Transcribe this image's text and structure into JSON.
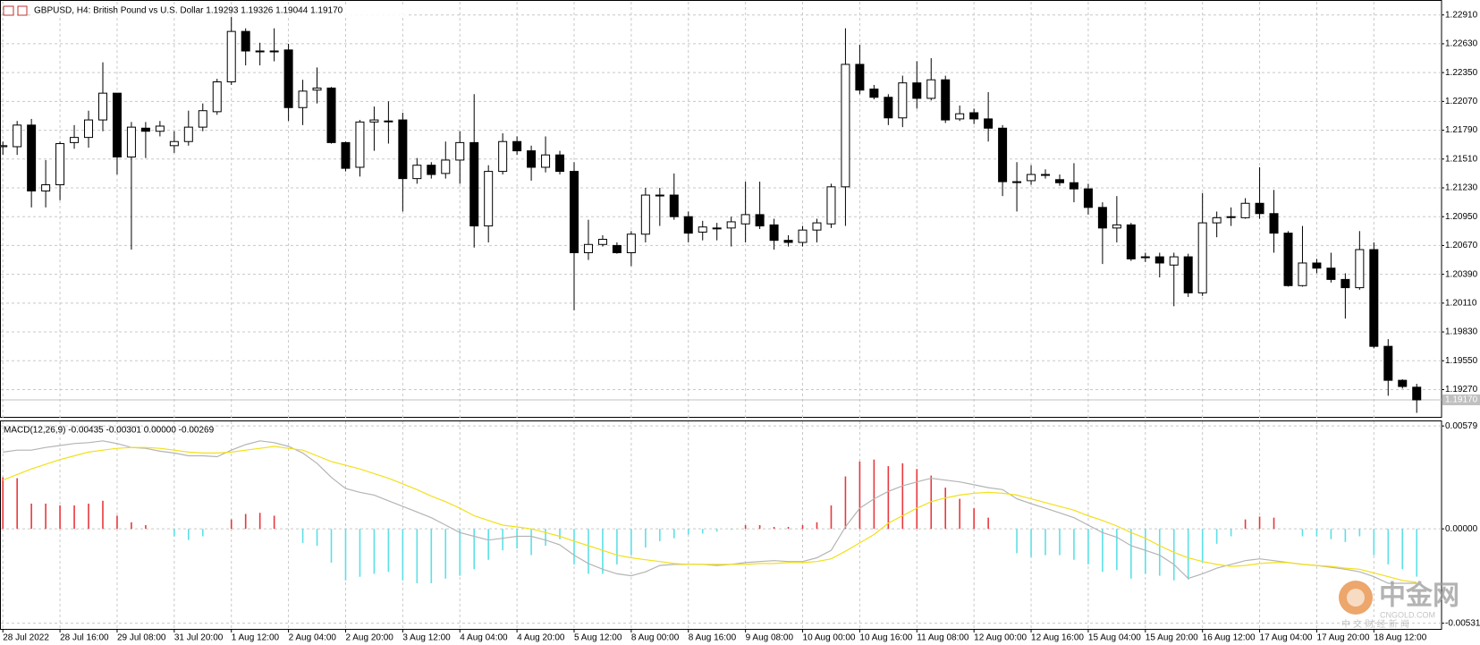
{
  "chart_data": [
    {
      "type": "candlestick",
      "title": "GBPUSD, H4:  British Pound vs U.S. Dollar  1.19293 1.19326 1.19044 1.19170",
      "categories": [
        "28 Jul 2022",
        null,
        null,
        null,
        "28 Jul 16:00",
        null,
        null,
        null,
        "29 Jul 08:00",
        null,
        null,
        null,
        "31 Jul 20:00",
        null,
        null,
        null,
        "1 Aug 12:00",
        null,
        null,
        null,
        "2 Aug 04:00",
        null,
        null,
        null,
        "2 Aug 20:00",
        null,
        null,
        null,
        "3 Aug 12:00",
        null,
        null,
        null,
        "4 Aug 04:00",
        null,
        null,
        null,
        "4 Aug 20:00",
        null,
        null,
        null,
        "5 Aug 12:00",
        null,
        null,
        null,
        "8 Aug 00:00",
        null,
        null,
        null,
        "8 Aug 16:00",
        null,
        null,
        null,
        "9 Aug 08:00",
        null,
        null,
        null,
        "10 Aug 00:00",
        null,
        null,
        null,
        "10 Aug 16:00",
        null,
        null,
        null,
        "11 Aug 08:00",
        null,
        null,
        null,
        "12 Aug 00:00",
        null,
        null,
        null,
        "12 Aug 16:00",
        null,
        null,
        null,
        "15 Aug 04:00",
        null,
        null,
        null,
        "15 Aug 20:00",
        null,
        null,
        null,
        "16 Aug 12:00",
        null,
        null,
        null,
        "17 Aug 04:00",
        null,
        null,
        null,
        "17 Aug 20:00",
        null,
        null,
        null,
        "18 Aug 12:00",
        null,
        null,
        null
      ],
      "open": [
        1.2163,
        1.2163,
        1.2184,
        1.212,
        1.2126,
        1.2167,
        1.2172,
        1.2189,
        1.2215,
        1.2153,
        1.2181,
        1.2178,
        1.2164,
        1.2168,
        1.2182,
        1.2197,
        1.2226,
        1.2275,
        1.2256,
        1.2256,
        1.2257,
        1.2201,
        1.2218,
        1.222,
        1.2167,
        1.2143,
        1.2187,
        1.2188,
        1.2189,
        1.2132,
        1.2145,
        1.2137,
        1.215,
        1.2167,
        1.2086,
        1.2139,
        1.2168,
        1.2159,
        1.2143,
        1.2155,
        1.2139,
        1.206,
        1.2068,
        1.2067,
        1.206,
        1.2078,
        1.2116,
        1.2116,
        1.2095,
        1.208,
        1.2084,
        1.2084,
        1.2088,
        1.2097,
        1.2087,
        1.2072,
        1.207,
        1.2082,
        1.2088,
        1.2124,
        1.2243,
        1.2219,
        1.2211,
        1.2191,
        1.2225,
        1.221,
        1.2228,
        1.219,
        1.2196,
        1.219,
        1.2181,
        1.2129,
        1.213,
        1.2136,
        1.2131,
        1.2128,
        1.2122,
        1.2104,
        1.2084,
        1.2087,
        1.2056,
        1.2056,
        1.2048,
        1.2056,
        1.2021,
        1.2089,
        1.2095,
        1.2094,
        1.2108,
        1.2098,
        1.2079,
        1.2028,
        1.205,
        1.2045,
        1.2034,
        1.2026,
        1.2063,
        1.1969,
        1.1936,
        1.19293
      ],
      "high": [
        1.2168,
        1.2188,
        1.219,
        1.215,
        1.2168,
        1.2184,
        1.2198,
        1.2245,
        1.2215,
        1.2187,
        1.2187,
        1.2188,
        1.2178,
        1.2198,
        1.2205,
        1.2229,
        1.2296,
        1.2278,
        1.2264,
        1.2278,
        1.2263,
        1.2228,
        1.224,
        1.2221,
        1.2168,
        1.2189,
        1.2202,
        1.2207,
        1.2196,
        1.2152,
        1.2148,
        1.2168,
        1.2178,
        1.2214,
        1.2145,
        1.2176,
        1.2173,
        1.2164,
        1.2173,
        1.2159,
        1.2148,
        1.2092,
        1.2077,
        1.207,
        1.2081,
        1.2123,
        1.2123,
        1.2137,
        1.21,
        1.2091,
        1.2089,
        1.2095,
        1.2129,
        1.2129,
        1.2093,
        1.2077,
        1.2086,
        1.2093,
        1.2127,
        1.2278,
        1.2262,
        1.2223,
        1.2214,
        1.2232,
        1.2246,
        1.2249,
        1.2232,
        1.2203,
        1.22,
        1.2216,
        1.2184,
        1.2148,
        1.2145,
        1.2141,
        1.2136,
        1.2147,
        1.2127,
        1.2109,
        1.2115,
        1.2089,
        1.206,
        1.206,
        1.206,
        1.2059,
        1.2118,
        1.21,
        1.2104,
        1.2113,
        1.2143,
        1.2121,
        1.2081,
        1.2086,
        1.2054,
        1.206,
        1.204,
        1.2081,
        1.207,
        1.1976,
        1.1937,
        1.19326
      ],
      "low": [
        1.2155,
        1.2155,
        1.2104,
        1.2104,
        1.2111,
        1.2161,
        1.2162,
        1.2178,
        1.2136,
        1.2063,
        1.2152,
        1.2173,
        1.2157,
        1.2164,
        1.2178,
        1.2194,
        1.2223,
        1.2242,
        1.2242,
        1.2246,
        1.2188,
        1.2184,
        1.2205,
        1.2166,
        1.2139,
        1.2134,
        1.2159,
        1.2166,
        1.21,
        1.2127,
        1.2132,
        1.2132,
        1.2127,
        1.2065,
        1.207,
        1.2136,
        1.2155,
        1.213,
        1.2138,
        1.2136,
        1.2004,
        1.2053,
        1.2066,
        1.2059,
        1.2047,
        1.207,
        1.2086,
        1.2092,
        1.207,
        1.2072,
        1.2072,
        1.2066,
        1.207,
        1.2083,
        1.2063,
        1.2066,
        1.2066,
        1.207,
        1.2084,
        1.2086,
        1.2214,
        1.2209,
        1.2184,
        1.2182,
        1.22,
        1.2208,
        1.2186,
        1.2188,
        1.2185,
        1.2168,
        1.2115,
        1.21,
        1.2126,
        1.2132,
        1.2125,
        1.2109,
        1.2097,
        1.2049,
        1.207,
        1.2052,
        1.2051,
        1.2036,
        1.2008,
        1.2017,
        1.2018,
        1.2075,
        1.2086,
        1.2093,
        1.2093,
        1.206,
        1.2027,
        1.2027,
        1.204,
        1.2031,
        1.1996,
        1.2024,
        1.1967,
        1.1921,
        1.1928,
        1.19044
      ],
      "close": [
        1.2164,
        1.2184,
        1.212,
        1.2126,
        1.2166,
        1.2172,
        1.2189,
        1.2215,
        1.2153,
        1.2182,
        1.2178,
        1.2183,
        1.2168,
        1.2182,
        1.2198,
        1.2226,
        1.2275,
        1.2256,
        1.2256,
        1.2256,
        1.2201,
        1.2217,
        1.222,
        1.2167,
        1.2142,
        1.2187,
        1.2189,
        1.2188,
        1.2132,
        1.2145,
        1.2136,
        1.215,
        1.2167,
        1.2086,
        1.2139,
        1.2168,
        1.2159,
        1.2143,
        1.2155,
        1.2139,
        1.206,
        1.2068,
        1.2073,
        1.206,
        1.2078,
        1.2116,
        1.2116,
        1.2095,
        1.2079,
        1.2085,
        1.2084,
        1.209,
        1.2097,
        1.2086,
        1.2072,
        1.207,
        1.2082,
        1.2089,
        1.2124,
        1.2243,
        1.2218,
        1.2211,
        1.2191,
        1.2225,
        1.221,
        1.2228,
        1.2189,
        1.2195,
        1.219,
        1.2181,
        1.2129,
        1.2129,
        1.2136,
        1.2136,
        1.2128,
        1.2122,
        1.2104,
        1.2084,
        1.2087,
        1.2054,
        1.2056,
        1.205,
        1.2056,
        1.2021,
        1.2089,
        1.2094,
        1.2095,
        1.2108,
        1.2098,
        1.2079,
        1.2028,
        1.205,
        1.2045,
        1.2034,
        1.2026,
        1.2063,
        1.1969,
        1.1936,
        1.193,
        1.1917
      ],
      "bull_color": "#ffffff",
      "bear_color": "#000000",
      "ylim": [
        1.18996,
        1.23038
      ],
      "yticks": [
        {
          "value": 1.2291,
          "label": "1.22910"
        },
        {
          "value": 1.2263,
          "label": "1.22630"
        },
        {
          "value": 1.2235,
          "label": "1.22350"
        },
        {
          "value": 1.2207,
          "label": "1.22070"
        },
        {
          "value": 1.2179,
          "label": "1.21790"
        },
        {
          "value": 1.2151,
          "label": "1.21510"
        },
        {
          "value": 1.2123,
          "label": "1.21230"
        },
        {
          "value": 1.2095,
          "label": "1.20950"
        },
        {
          "value": 1.2067,
          "label": "1.20670"
        },
        {
          "value": 1.2039,
          "label": "1.20390"
        },
        {
          "value": 1.2011,
          "label": "1.20110"
        },
        {
          "value": 1.1983,
          "label": "1.19830"
        },
        {
          "value": 1.1955,
          "label": "1.19550"
        },
        {
          "value": 1.1927,
          "label": "1.19270"
        }
      ],
      "last_price_label": "1.19170",
      "grid": true
    },
    {
      "type": "macd",
      "title": "MACD(12,26,9) -0.00435 -0.00301 0.00000 -0.00269",
      "series": [
        {
          "type": "bar",
          "color_positive": "#e8383d",
          "color_negative": "#5ce0e6",
          "values": [
            0.0029,
            0.00285,
            0.00142,
            0.00142,
            0.00132,
            0.00132,
            0.00142,
            0.00158,
            0.00074,
            0.00037,
            0.00021,
            0,
            -0.00042,
            -0.00063,
            -0.00042,
            0,
            0.00053,
            0.00084,
            0.0009,
            0.00074,
            0,
            -0.00079,
            -0.00095,
            -0.0019,
            -0.0029,
            -0.0027,
            -0.00253,
            -0.00242,
            -0.0029,
            -0.00306,
            -0.00306,
            -0.0028,
            -0.00264,
            -0.00227,
            -0.00174,
            -0.00121,
            -0.00111,
            -0.00148,
            -0.00095,
            -0.00058,
            -0.002,
            -0.00253,
            -0.00253,
            -0.002,
            -0.00148,
            -0.00105,
            -0.00069,
            -0.00053,
            -0.00032,
            -0.00026,
            -0.00016,
            -5e-05,
            0.00021,
            0.00021,
            0.00011,
            0.00011,
            0.00021,
            0.00037,
            0.00132,
            0.00295,
            0.00379,
            0.0039,
            0.00353,
            0.00369,
            0.00337,
            0.003,
            0.00232,
            0.00169,
            0.00116,
            0.00063,
            0,
            -0.00137,
            -0.00158,
            -0.00148,
            -0.00148,
            -0.00174,
            -0.002,
            -0.00242,
            -0.00232,
            -0.0028,
            -0.00253,
            -0.00264,
            -0.0029,
            -0.00285,
            -0.0019,
            -0.00084,
            -0.00042,
            0.00053,
            0.00069,
            0.00063,
            0,
            -0.00042,
            -0.00042,
            -0.00058,
            -0.00074,
            -0.00042,
            -0.00148,
            -0.002,
            -0.00227,
            -0.00269
          ]
        },
        {
          "type": "line",
          "color": "#b4b4b4",
          "values": [
            0.00432,
            0.00443,
            0.00443,
            0.00458,
            0.00469,
            0.0048,
            0.00485,
            0.00495,
            0.0048,
            0.00458,
            0.00453,
            0.00437,
            0.00427,
            0.00411,
            0.00411,
            0.00406,
            0.00443,
            0.00474,
            0.00495,
            0.00485,
            0.00464,
            0.00427,
            0.00369,
            0.0029,
            0.00227,
            0.00206,
            0.0019,
            0.00158,
            0.00126,
            0.00095,
            0.00063,
            0.00021,
            -0.00021,
            -0.00042,
            -0.00063,
            -0.00053,
            -0.00042,
            -0.00042,
            -0.00063,
            -0.0009,
            -0.00148,
            -0.00195,
            -0.00227,
            -0.00253,
            -0.00264,
            -0.00242,
            -0.00206,
            -0.002,
            -0.002,
            -0.002,
            -0.00206,
            -0.002,
            -0.0019,
            -0.00184,
            -0.00179,
            -0.00184,
            -0.00184,
            -0.00163,
            -0.00121,
            0.00011,
            0.00116,
            0.00169,
            0.00211,
            0.00242,
            0.00264,
            0.00285,
            0.00274,
            0.00264,
            0.00248,
            0.00232,
            0.00221,
            0.00169,
            0.00142,
            0.00116,
            0.0009,
            0.00063,
            0.00021,
            -0.00021,
            -0.00047,
            -0.00095,
            -0.00121,
            -0.00148,
            -0.002,
            -0.00279,
            -0.00253,
            -0.00221,
            -0.002,
            -0.00179,
            -0.00169,
            -0.00179,
            -0.0019,
            -0.002,
            -0.00206,
            -0.00216,
            -0.00227,
            -0.00242,
            -0.00269,
            -0.00306,
            -0.00306,
            -0.00306
          ]
        },
        {
          "type": "line",
          "color": "#f2e01a",
          "values": [
            0.00274,
            0.00306,
            0.00337,
            0.00364,
            0.0039,
            0.00411,
            0.00432,
            0.00443,
            0.00453,
            0.00458,
            0.00458,
            0.00453,
            0.00443,
            0.00432,
            0.00427,
            0.00427,
            0.00432,
            0.00443,
            0.00453,
            0.00464,
            0.00453,
            0.00443,
            0.00411,
            0.00379,
            0.00358,
            0.00337,
            0.00311,
            0.00285,
            0.00253,
            0.00221,
            0.00184,
            0.00153,
            0.00116,
            0.00074,
            0.00047,
            0.00021,
            0.00011,
            0,
            -0.00021,
            -0.00042,
            -0.00069,
            -0.00095,
            -0.00121,
            -0.00148,
            -0.00163,
            -0.00174,
            -0.00184,
            -0.00195,
            -0.002,
            -0.002,
            -0.002,
            -0.002,
            -0.002,
            -0.00195,
            -0.00195,
            -0.0019,
            -0.0019,
            -0.00184,
            -0.00169,
            -0.00126,
            -0.00079,
            -0.00032,
            0.00032,
            0.00074,
            0.00116,
            0.00153,
            0.00174,
            0.0019,
            0.002,
            0.00206,
            0.002,
            0.0019,
            0.00169,
            0.00148,
            0.00126,
            0.00105,
            0.00074,
            0.00047,
            0.00016,
            -0.00021,
            -0.00053,
            -0.00095,
            -0.00132,
            -0.00163,
            -0.00184,
            -0.002,
            -0.00211,
            -0.00206,
            -0.00195,
            -0.0019,
            -0.0019,
            -0.002,
            -0.00206,
            -0.00211,
            -0.00221,
            -0.00227,
            -0.00248,
            -0.00269,
            -0.0029,
            -0.00301
          ]
        }
      ],
      "ylim": [
        -0.00563,
        0.00605
      ],
      "yticks": [
        0.00579,
        {
          "value": 0,
          "label": "0.00000"
        },
        -0.00531
      ],
      "grid": true
    },
    {
      "type": "watermark",
      "brand": "中金网",
      "site": "CNGOLD.COM",
      "tagline": "中 文 财 经 新 闻"
    }
  ]
}
